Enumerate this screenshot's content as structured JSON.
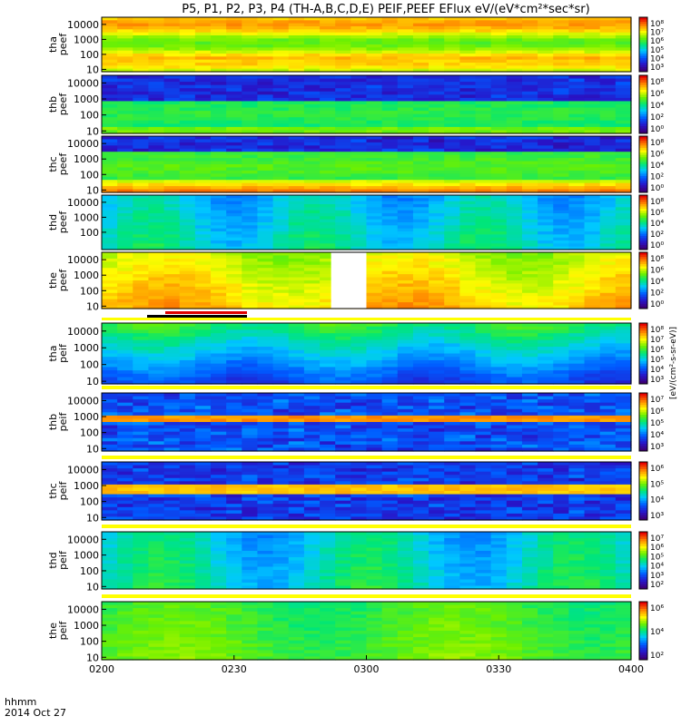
{
  "title": "P5, P1, P2, P3, P4 (TH-A,B,C,D,E) PEIF,PEEF EFlux eV/(eV*cm²*sec*sr)",
  "footer": {
    "label": "hhmm",
    "date": "2014 Oct 27"
  },
  "chart_data": {
    "type": "heatmap",
    "x_ticks": [
      "0200",
      "0230",
      "0300",
      "0330",
      "0400"
    ],
    "x_range": [
      "02:00",
      "04:00"
    ],
    "y_scale": "log",
    "y_range_eV": [
      7,
      30000
    ],
    "colorbar_unit": "[eV/(cm²-s-sr-eV)]",
    "panels": [
      {
        "probe": "tha",
        "product": "peef",
        "ylabel": [
          "tha",
          "peef"
        ],
        "yticks": [
          "10000",
          "1000",
          "100",
          "10"
        ],
        "cbar_ticks": [
          "10⁸",
          "10⁷",
          "10⁶",
          "10⁵",
          "10⁴",
          "10³"
        ],
        "profile": [
          [
            "10",
            "yellow-orange"
          ],
          [
            "30",
            "orange-red"
          ],
          [
            "100",
            "yellow-orange"
          ],
          [
            "500",
            "green"
          ],
          [
            "2000",
            "yellow-green"
          ],
          [
            "10000",
            "orange-red"
          ]
        ]
      },
      {
        "probe": "thb",
        "product": "peef",
        "ylabel": [
          "thb",
          "peef"
        ],
        "yticks": [
          "10000",
          "1000",
          "100",
          "10"
        ],
        "cbar_ticks": [
          "10⁸",
          "10⁶",
          "10⁴",
          "10²",
          "10⁰"
        ]
      },
      {
        "probe": "thc",
        "product": "peef",
        "ylabel": [
          "thc",
          "peef"
        ],
        "yticks": [
          "10000",
          "1000",
          "100",
          "10"
        ],
        "cbar_ticks": [
          "10⁸",
          "10⁶",
          "10⁴",
          "10²",
          "10⁰"
        ]
      },
      {
        "probe": "thd",
        "product": "peef",
        "ylabel": [
          "thd",
          "peef"
        ],
        "yticks": [
          "10000",
          "1000",
          "100"
        ],
        "cbar_ticks": [
          "10⁸",
          "10⁶",
          "10⁴",
          "10²",
          "10⁰"
        ]
      },
      {
        "probe": "the",
        "product": "peef",
        "ylabel": [
          "the",
          "peef"
        ],
        "yticks": [
          "10000",
          "1000",
          "100",
          "10"
        ],
        "cbar_ticks": [
          "10⁸",
          "10⁶",
          "10⁴",
          "10²",
          "10⁰"
        ],
        "data_gap": [
          "02:52",
          "03:00"
        ]
      },
      {
        "probe": "tha",
        "product": "peif",
        "ylabel": [
          "tha",
          "peif"
        ],
        "yticks": [
          "10000",
          "1000",
          "100",
          "10"
        ],
        "cbar_ticks": [
          "10⁸",
          "10⁷",
          "10⁶",
          "10⁵",
          "10⁴",
          "10³"
        ]
      },
      {
        "probe": "thb",
        "product": "peif",
        "ylabel": [
          "thb",
          "peif"
        ],
        "yticks": [
          "10000",
          "1000",
          "100",
          "10"
        ],
        "cbar_ticks": [
          "10⁷",
          "10⁶",
          "10⁵",
          "10⁴",
          "10³"
        ]
      },
      {
        "probe": "thc",
        "product": "peif",
        "ylabel": [
          "thc",
          "peif"
        ],
        "yticks": [
          "10000",
          "1000",
          "100",
          "10"
        ],
        "cbar_ticks": [
          "10⁶",
          "10⁵",
          "10⁴",
          "10³"
        ]
      },
      {
        "probe": "thd",
        "product": "peif",
        "ylabel": [
          "thd",
          "peif"
        ],
        "yticks": [
          "10000",
          "1000",
          "100",
          "10"
        ],
        "cbar_ticks": [
          "10⁷",
          "10⁶",
          "10⁵",
          "10⁴",
          "10³",
          "10²"
        ]
      },
      {
        "probe": "the",
        "product": "peif",
        "ylabel": [
          "the",
          "peif"
        ],
        "yticks": [
          "10000",
          "1000",
          "100",
          "10"
        ],
        "cbar_ticks": [
          "10⁶",
          "10⁴",
          "10²"
        ]
      }
    ],
    "grid": false
  }
}
